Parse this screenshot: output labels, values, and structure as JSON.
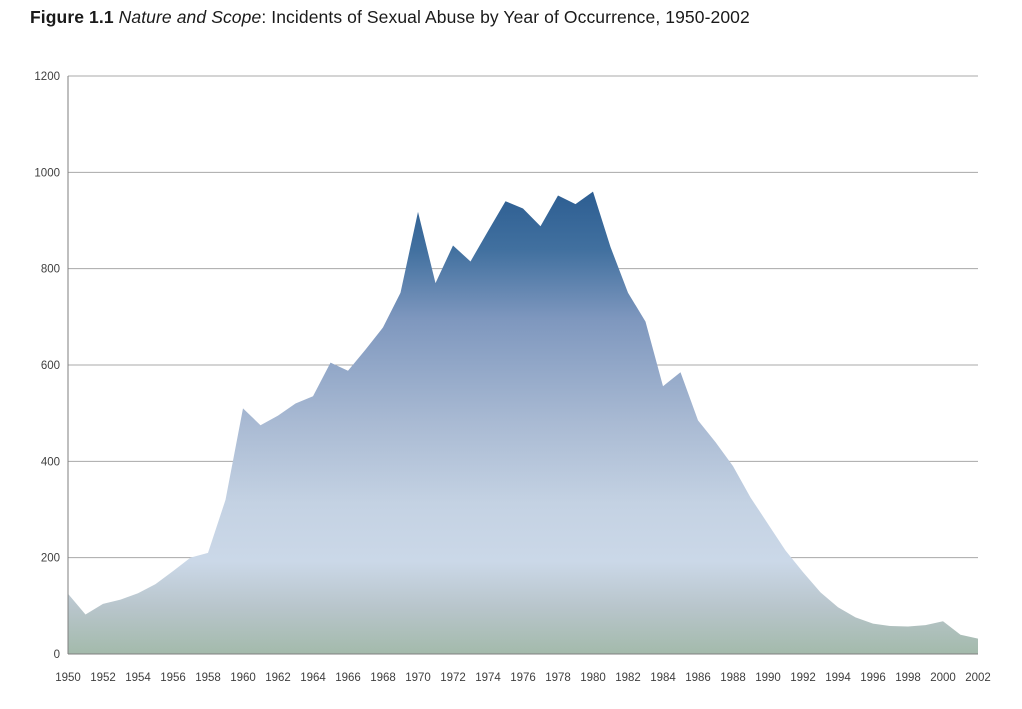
{
  "title": {
    "figure_label": "Figure 1.1 ",
    "figure_title_italic": "Nature and Scope",
    "figure_title_rest": ": Incidents of Sexual Abuse by Year of Occurrence, 1950-2002"
  },
  "chart_data": {
    "type": "area",
    "title": "Figure 1.1 Nature and Scope: Incidents of Sexual Abuse by Year of Occurrence, 1950-2002",
    "xlabel": "",
    "ylabel": "",
    "series_name": "Incidents of sexual abuse by year of occurrence",
    "x": [
      1950,
      1951,
      1952,
      1953,
      1954,
      1955,
      1956,
      1957,
      1958,
      1959,
      1960,
      1961,
      1962,
      1963,
      1964,
      1965,
      1966,
      1967,
      1968,
      1969,
      1970,
      1971,
      1972,
      1973,
      1974,
      1975,
      1976,
      1977,
      1978,
      1979,
      1980,
      1981,
      1982,
      1983,
      1984,
      1985,
      1986,
      1987,
      1988,
      1989,
      1990,
      1991,
      1992,
      1993,
      1994,
      1995,
      1996,
      1997,
      1998,
      1999,
      2000,
      2001,
      2002
    ],
    "values": [
      125,
      82,
      104,
      113,
      126,
      145,
      172,
      200,
      210,
      320,
      510,
      475,
      495,
      520,
      535,
      605,
      588,
      632,
      678,
      750,
      918,
      770,
      848,
      815,
      878,
      940,
      925,
      888,
      952,
      934,
      960,
      845,
      750,
      690,
      556,
      585,
      485,
      440,
      390,
      325,
      270,
      215,
      170,
      128,
      97,
      76,
      63,
      58,
      57,
      60,
      68,
      40,
      32
    ],
    "ylim": [
      0,
      1200
    ],
    "yticks": [
      0,
      200,
      400,
      600,
      800,
      1000,
      1200
    ],
    "xtick_labels": [
      "1950",
      "1952",
      "1954",
      "1956",
      "1958",
      "1960",
      "1962",
      "1964",
      "1966",
      "1968",
      "1970",
      "1972",
      "1974",
      "1976",
      "1978",
      "1980",
      "1982",
      "1984",
      "1986",
      "1988",
      "1990",
      "1992",
      "1994",
      "1996",
      "1998",
      "2000",
      "2002"
    ],
    "grid": "horizontal",
    "legend": "none",
    "colors": {
      "background": "#ffffff",
      "gridline": "#a8a8a8",
      "axis": "#7f7f7f",
      "tick_text": "#3f3f3f",
      "title_text": "#1a1a1a",
      "area_gradient": [
        {
          "offset": 0.0,
          "color": "#26537e"
        },
        {
          "offset": 0.2,
          "color": "#2d5e92"
        },
        {
          "offset": 0.3,
          "color": "#41709f"
        },
        {
          "offset": 0.42,
          "color": "#7e97be"
        },
        {
          "offset": 0.6,
          "color": "#a9bad3"
        },
        {
          "offset": 0.74,
          "color": "#c4d2e3"
        },
        {
          "offset": 0.84,
          "color": "#cbd8e8"
        },
        {
          "offset": 0.92,
          "color": "#b8c5cb"
        },
        {
          "offset": 1.0,
          "color": "#a3baab"
        }
      ]
    }
  }
}
